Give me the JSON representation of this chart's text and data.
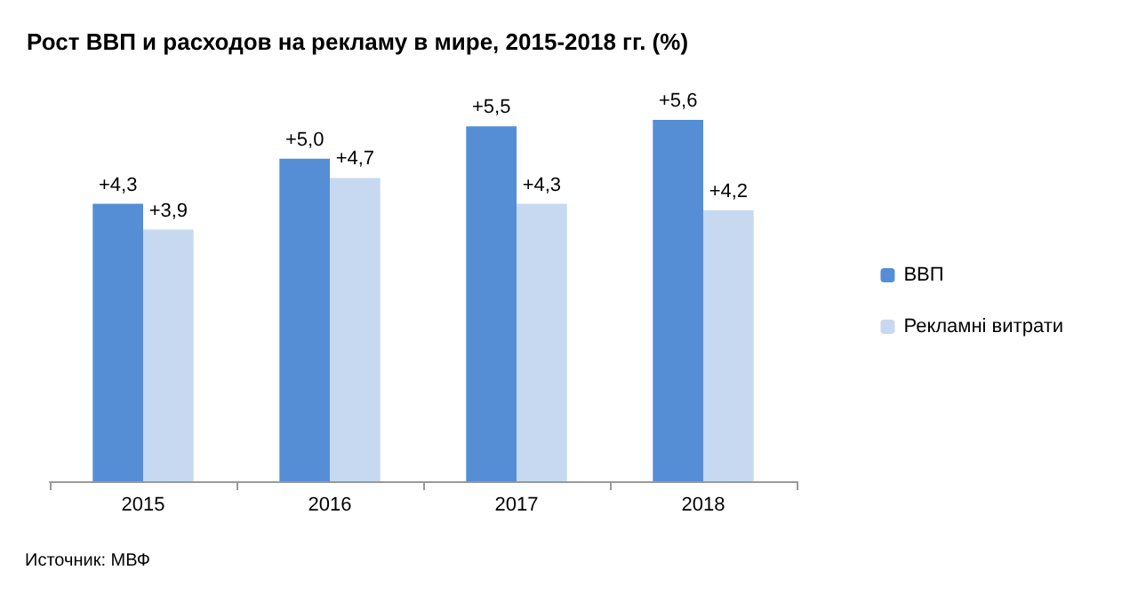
{
  "chart_data": {
    "type": "bar",
    "title": "Рост ВВП и расходов на рекламу в мире, 2015-2018 гг. (%)",
    "categories": [
      "2015",
      "2016",
      "2017",
      "2018"
    ],
    "series": [
      {
        "name": "ВВП",
        "color": "#558ed5",
        "values": [
          4.3,
          5.0,
          5.5,
          5.6
        ],
        "value_labels": [
          "+4,3",
          "+5,0",
          "+5,5",
          "+5,6"
        ]
      },
      {
        "name": "Рекламні витрати",
        "color": "#c6d9f1",
        "values": [
          3.9,
          4.7,
          4.3,
          4.2
        ],
        "value_labels": [
          "+3,9",
          "+4,7",
          "+4,3",
          "+4,2"
        ]
      }
    ],
    "legend": "right",
    "grid": false,
    "annotations": [
      "Источник: МВФ"
    ]
  }
}
